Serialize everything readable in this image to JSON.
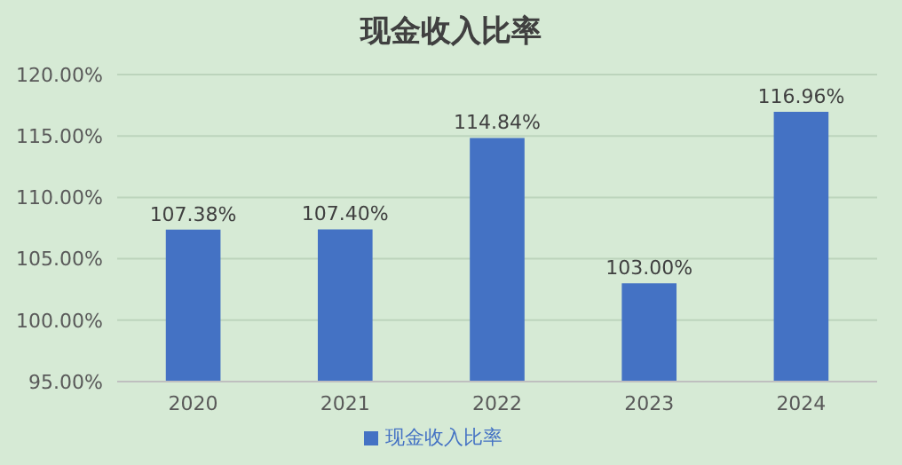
{
  "chart_data": {
    "type": "bar",
    "title": "现金收入比率",
    "categories": [
      "2020",
      "2021",
      "2022",
      "2023",
      "2024"
    ],
    "series": [
      {
        "name": "现金收入比率",
        "color": "#4472c4",
        "values": [
          107.38,
          107.4,
          114.84,
          103.0,
          116.96
        ],
        "value_labels": [
          "107.38%",
          "107.40%",
          "114.84%",
          "103.00%",
          "116.96%"
        ]
      }
    ],
    "ylim": [
      95,
      120
    ],
    "yticks": [
      {
        "value": 95,
        "label": "95.00%"
      },
      {
        "value": 100,
        "label": "100.00%"
      },
      {
        "value": 105,
        "label": "105.00%"
      },
      {
        "value": 110,
        "label": "110.00%"
      },
      {
        "value": 115,
        "label": "115.00%"
      },
      {
        "value": 120,
        "label": "120.00%"
      }
    ],
    "grid": "y",
    "legend": "bottom"
  }
}
